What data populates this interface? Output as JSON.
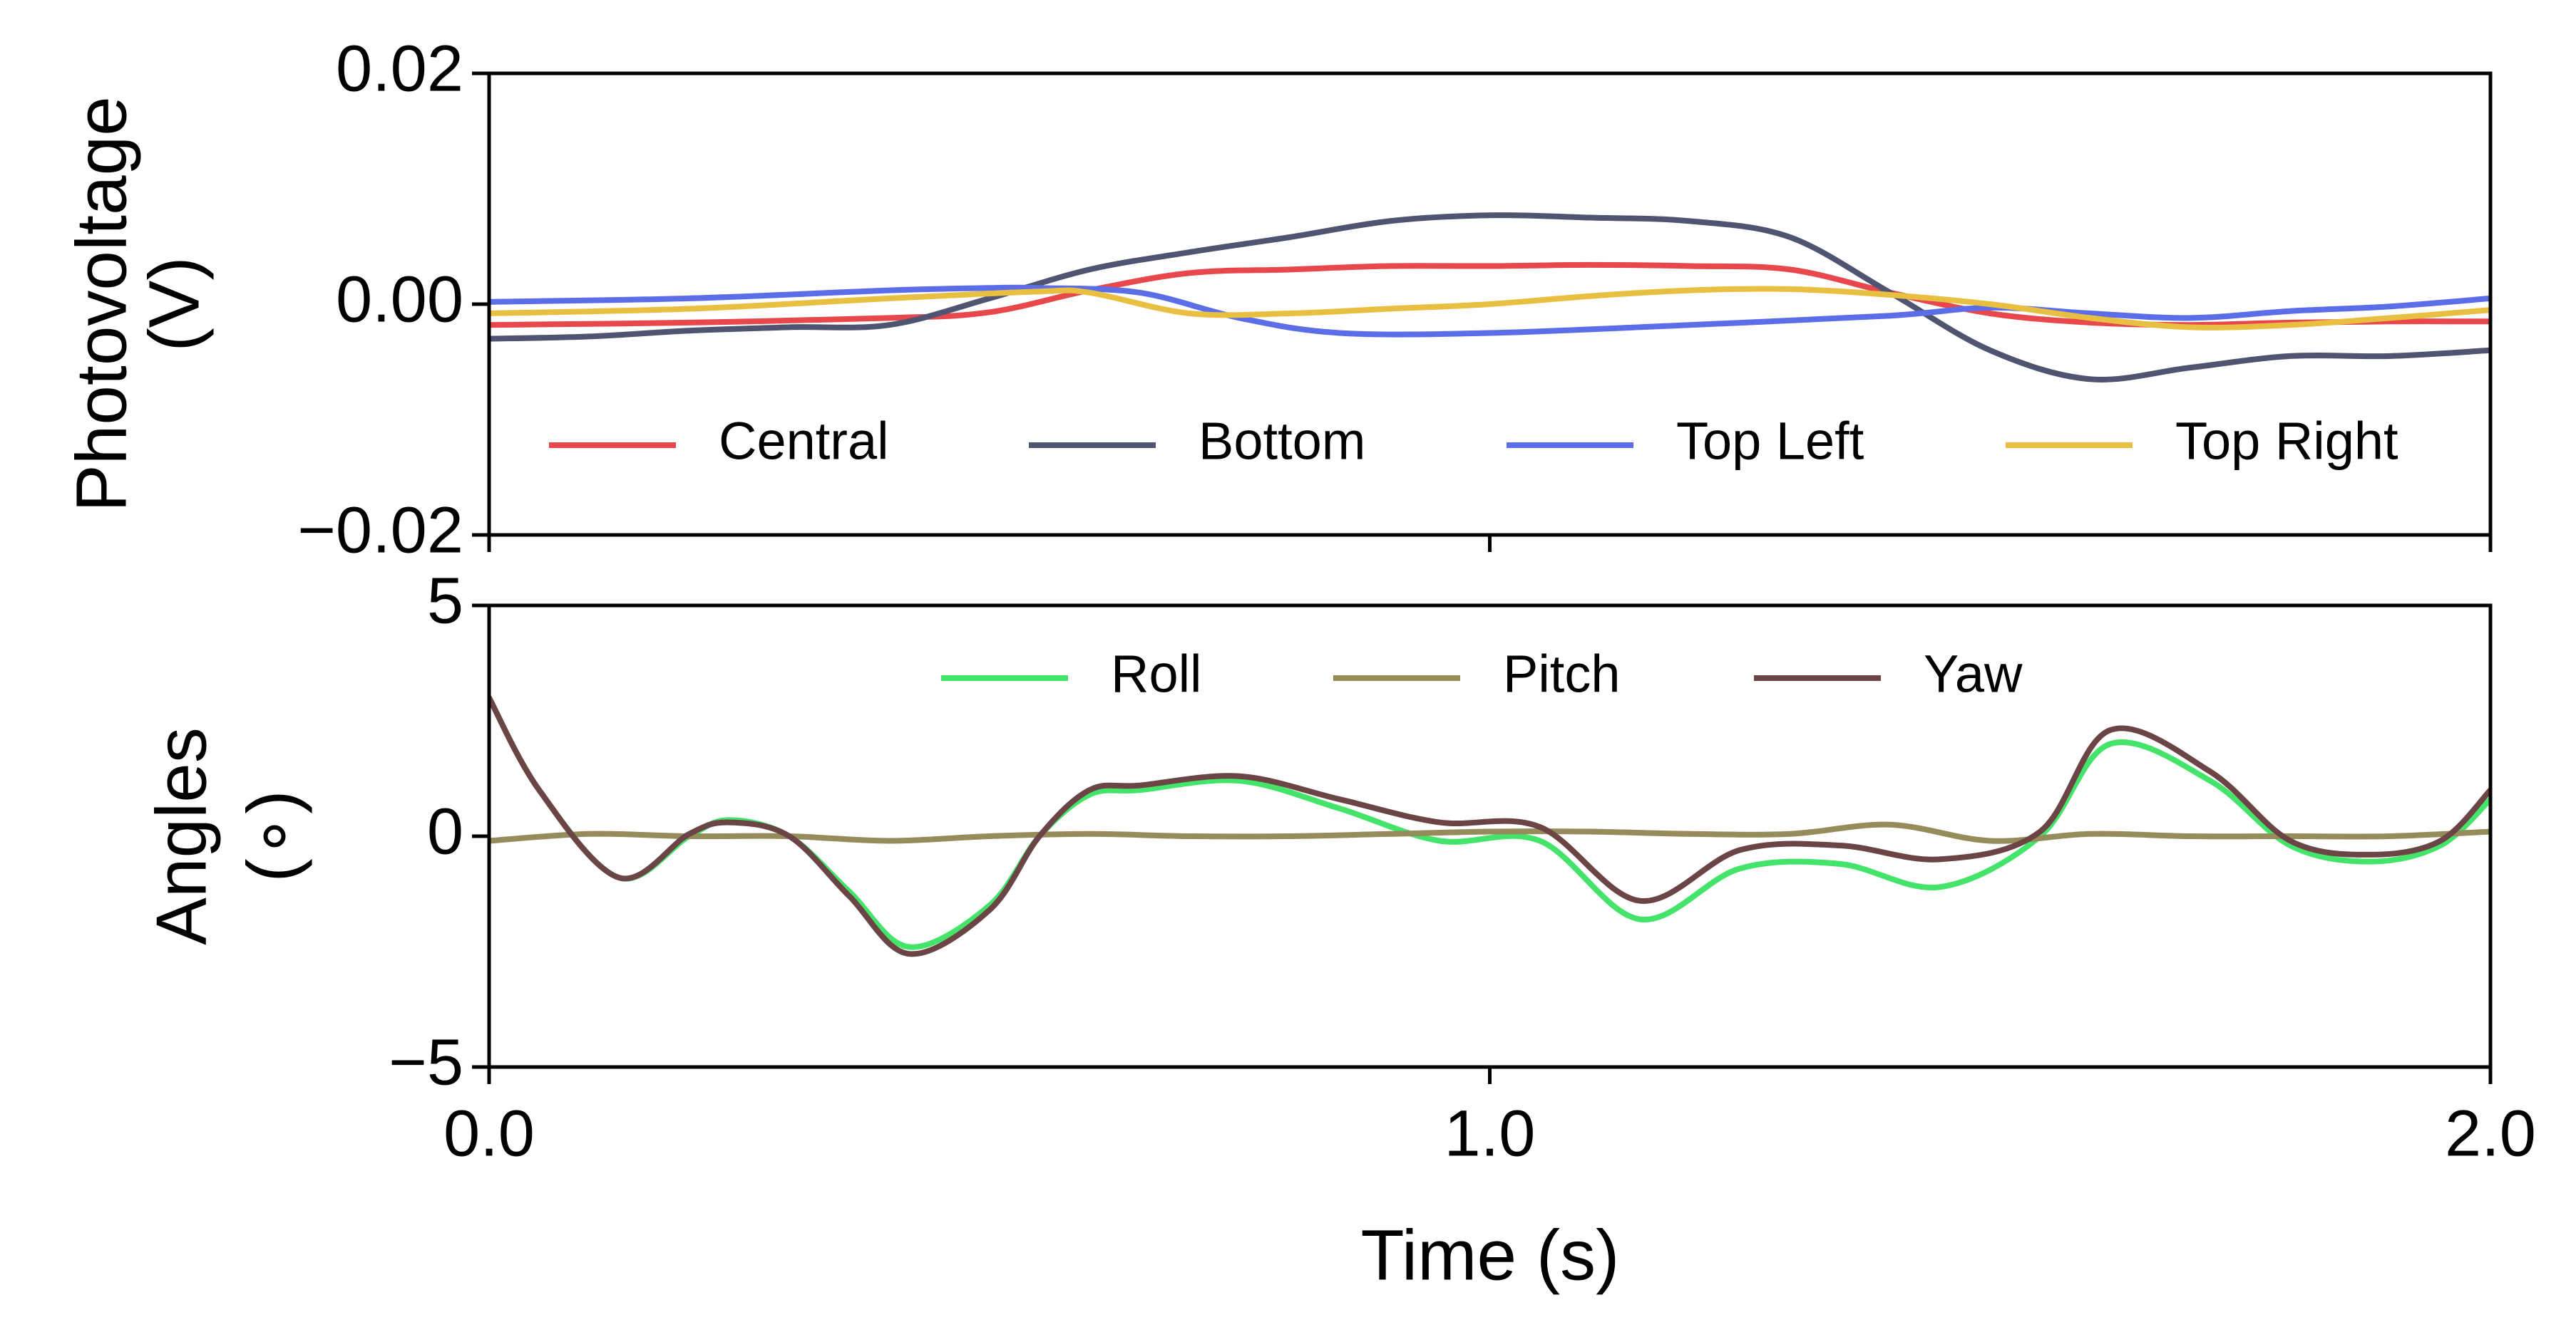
{
  "chart_data": [
    {
      "type": "line",
      "xlim": [
        0,
        2
      ],
      "ylim": [
        -0.02,
        0.02
      ],
      "ylabel": [
        "Photovoltage",
        "(V)"
      ],
      "xlabel": "",
      "y_ticks": [
        -0.02,
        0.0,
        0.02
      ],
      "y_tick_labels": [
        "−0.02",
        "0.00",
        "0.02"
      ],
      "x_ticks": [
        0,
        1,
        2
      ],
      "x_tick_labels": [],
      "grid": false,
      "legend_position": "bottom",
      "series": [
        {
          "name": "Central",
          "color": "#e8474c",
          "x": [
            0,
            0.2,
            0.4,
            0.5,
            0.6,
            0.7,
            0.8,
            0.9,
            1.0,
            1.1,
            1.2,
            1.3,
            1.4,
            1.5,
            1.6,
            1.7,
            1.8,
            1.9,
            2.0
          ],
          "y": [
            -0.0018,
            -0.0016,
            -0.0012,
            -0.0007,
            0.0012,
            0.0027,
            0.003,
            0.0033,
            0.0033,
            0.0034,
            0.0033,
            0.003,
            0.001,
            -0.0008,
            -0.0016,
            -0.0018,
            -0.0016,
            -0.0015,
            -0.0015
          ]
        },
        {
          "name": "Bottom",
          "color": "#4f5470",
          "x": [
            0,
            0.1,
            0.2,
            0.3,
            0.4,
            0.5,
            0.6,
            0.7,
            0.8,
            0.9,
            1.0,
            1.1,
            1.2,
            1.3,
            1.4,
            1.5,
            1.6,
            1.7,
            1.8,
            1.9,
            2.0
          ],
          "y": [
            -0.003,
            -0.0028,
            -0.0023,
            -0.002,
            -0.0018,
            0.0005,
            0.003,
            0.0045,
            0.0058,
            0.0072,
            0.0077,
            0.0075,
            0.0072,
            0.0058,
            0.001,
            -0.004,
            -0.0065,
            -0.0055,
            -0.0045,
            -0.0045,
            -0.004
          ]
        },
        {
          "name": "Top Left",
          "color": "#5b6ee8",
          "x": [
            0,
            0.2,
            0.4,
            0.5,
            0.55,
            0.65,
            0.75,
            0.85,
            1.0,
            1.2,
            1.4,
            1.5,
            1.6,
            1.7,
            1.8,
            1.9,
            2.0
          ],
          "y": [
            0.0002,
            0.0005,
            0.0012,
            0.0014,
            0.0014,
            0.001,
            -0.0012,
            -0.0025,
            -0.0025,
            -0.0018,
            -0.001,
            -0.0003,
            -0.0008,
            -0.0012,
            -0.0006,
            -0.0002,
            0.0005
          ]
        },
        {
          "name": "Top Right",
          "color": "#e9bf41",
          "x": [
            0,
            0.2,
            0.4,
            0.55,
            0.6,
            0.7,
            0.8,
            0.9,
            1.0,
            1.1,
            1.2,
            1.3,
            1.4,
            1.5,
            1.6,
            1.7,
            1.8,
            1.9,
            2.0
          ],
          "y": [
            -0.0008,
            -0.0004,
            0.0005,
            0.0011,
            0.001,
            -0.0008,
            -0.0008,
            -0.0004,
            0.0,
            0.0007,
            0.0012,
            0.0013,
            0.0008,
            0.0,
            -0.0012,
            -0.002,
            -0.0018,
            -0.0012,
            -0.0005
          ]
        }
      ]
    },
    {
      "type": "line",
      "xlim": [
        0,
        2
      ],
      "ylim": [
        -5,
        5
      ],
      "ylabel": [
        "Angles",
        "(∘)"
      ],
      "xlabel": "Time (s)",
      "y_ticks": [
        -5,
        0,
        5
      ],
      "y_tick_labels": [
        "−5",
        "0",
        "5"
      ],
      "x_ticks": [
        0,
        1,
        2
      ],
      "x_tick_labels": [
        "0.0",
        "1.0",
        "2.0"
      ],
      "grid": false,
      "legend_position": "top",
      "series": [
        {
          "name": "Roll",
          "color": "#44e46b",
          "x": [
            0,
            0.05,
            0.13,
            0.2,
            0.24,
            0.3,
            0.36,
            0.42,
            0.5,
            0.55,
            0.6,
            0.65,
            0.75,
            0.85,
            0.95,
            1.05,
            1.15,
            1.25,
            1.35,
            1.45,
            1.55,
            1.62,
            1.72,
            1.8,
            1.88,
            1.95,
            2.0
          ],
          "y": [
            3.0,
            1.0,
            -0.9,
            0.0,
            0.35,
            0.0,
            -1.2,
            -2.4,
            -1.5,
            0.0,
            0.9,
            1.0,
            1.2,
            0.6,
            -0.1,
            -0.1,
            -1.8,
            -0.7,
            -0.6,
            -1.1,
            0.0,
            2.0,
            1.2,
            -0.2,
            -0.55,
            -0.2,
            0.8
          ]
        },
        {
          "name": "Pitch",
          "color": "#968b5a",
          "x": [
            0,
            0.1,
            0.2,
            0.3,
            0.4,
            0.5,
            0.6,
            0.7,
            0.8,
            0.9,
            1.0,
            1.1,
            1.2,
            1.3,
            1.4,
            1.5,
            1.6,
            1.7,
            1.8,
            1.9,
            2.0
          ],
          "y": [
            -0.1,
            0.05,
            0.0,
            0.0,
            -0.1,
            0.0,
            0.05,
            0.0,
            0.0,
            0.05,
            0.1,
            0.1,
            0.05,
            0.05,
            0.25,
            -0.1,
            0.05,
            0.0,
            0.0,
            0.0,
            0.1
          ]
        },
        {
          "name": "Yaw",
          "color": "#6b4546",
          "x": [
            0,
            0.05,
            0.13,
            0.2,
            0.24,
            0.3,
            0.36,
            0.42,
            0.5,
            0.55,
            0.6,
            0.65,
            0.75,
            0.85,
            0.95,
            1.05,
            1.15,
            1.25,
            1.35,
            1.45,
            1.55,
            1.62,
            1.72,
            1.8,
            1.88,
            1.95,
            2.0
          ],
          "y": [
            3.0,
            1.0,
            -0.9,
            0.05,
            0.3,
            0.0,
            -1.3,
            -2.55,
            -1.6,
            0.0,
            1.0,
            1.1,
            1.3,
            0.8,
            0.3,
            0.2,
            -1.4,
            -0.3,
            -0.2,
            -0.5,
            0.1,
            2.3,
            1.4,
            -0.1,
            -0.4,
            -0.1,
            1.0
          ]
        }
      ]
    }
  ]
}
